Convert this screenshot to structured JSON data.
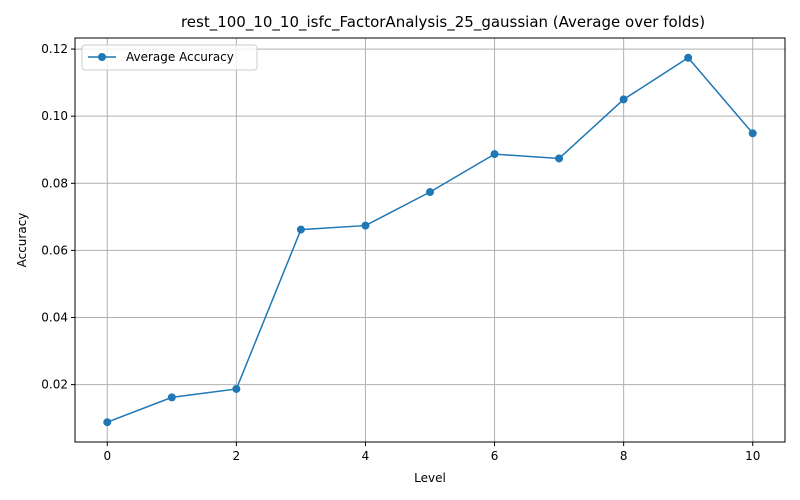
{
  "chart_data": {
    "type": "line",
    "title": "rest_100_10_10_isfc_FactorAnalysis_25_gaussian (Average over folds)",
    "xlabel": "Level",
    "ylabel": "Accuracy",
    "xlim": [
      -0.5,
      10.5
    ],
    "ylim": [
      0.0029,
      0.1233
    ],
    "xticks": [
      0,
      2,
      4,
      6,
      8,
      10
    ],
    "yticks": [
      0.02,
      0.04,
      0.06,
      0.08,
      0.1,
      0.12
    ],
    "ytick_labels": [
      "0.02",
      "0.04",
      "0.06",
      "0.08",
      "0.10",
      "0.12"
    ],
    "grid": true,
    "legend_position": "top-left",
    "series": [
      {
        "name": "Average Accuracy",
        "color": "#1f77b4",
        "marker": "circle",
        "x": [
          0,
          1,
          2,
          3,
          4,
          5,
          6,
          7,
          8,
          9,
          10
        ],
        "y": [
          0.0088,
          0.0162,
          0.0187,
          0.0662,
          0.0674,
          0.0774,
          0.0887,
          0.0874,
          0.105,
          0.1174,
          0.0949
        ]
      }
    ]
  }
}
